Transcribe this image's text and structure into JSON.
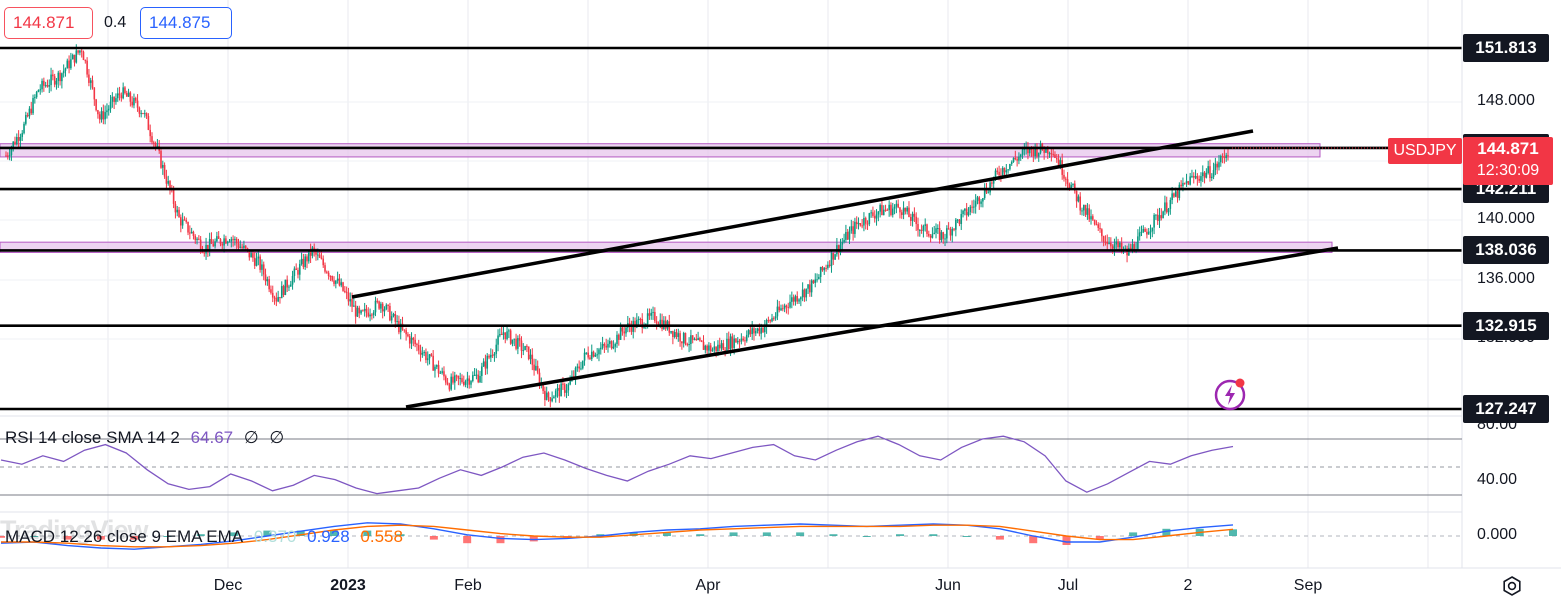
{
  "header": {
    "bid": "144.871",
    "spread": "0.4",
    "ask": "144.875"
  },
  "symbol": {
    "name": "USDJPY",
    "last": "144.871",
    "countdown": "12:30:09"
  },
  "colors": {
    "up": "#089981",
    "down": "#f23645",
    "zone": "#e7c6ec",
    "zone_border": "#b45ac3",
    "rsi": "#7e57c2",
    "macd": "#2962ff",
    "signal": "#ff6d00"
  },
  "levels": [
    {
      "label": "151.813",
      "value": 151.813
    },
    {
      "label": "145.009",
      "value": 145.009
    },
    {
      "label": "142.211",
      "value": 142.211
    },
    {
      "label": "138.036",
      "value": 138.036
    },
    {
      "label": "132.915",
      "value": 132.915
    },
    {
      "label": "127.247",
      "value": 127.247
    }
  ],
  "price_axis_ticks": [
    "148.000",
    "140.000",
    "136.000",
    "132.000"
  ],
  "rsi_axis_ticks": [
    "80.00",
    "40.00"
  ],
  "macd_axis_ticks": [
    "0.000"
  ],
  "date_labels": [
    "Dec",
    "2023",
    "Feb",
    "Apr",
    "Jun",
    "Jul",
    "2",
    "Sep"
  ],
  "rsi": {
    "label": "RSI 14 close SMA 14 2",
    "value": "64.67",
    "na1": "∅",
    "na2": "∅"
  },
  "macd": {
    "label": "MACD 12 26 close 9 EMA EMA",
    "hist": "0.370",
    "macd": "0.928",
    "signal": "0.558"
  },
  "watermark": "TradingView",
  "chart_data": {
    "type": "candlestick",
    "symbol": "USDJPY",
    "x_labels": [
      "Dec",
      "2023",
      "Feb",
      "Apr",
      "Jun",
      "Jul",
      "2",
      "Sep"
    ],
    "ylim": [
      126.5,
      153.5
    ],
    "series": [
      {
        "name": "USDJPY close (approx.)",
        "x": [
          0,
          10,
          18,
          30,
          42,
          52,
          64,
          76,
          84,
          96,
          110,
          124,
          140,
          150,
          170,
          186,
          196,
          208,
          220,
          230,
          246,
          262,
          276,
          290,
          300,
          312,
          322,
          334,
          344,
          360,
          376,
          392,
          406,
          420,
          434,
          448,
          460,
          472,
          484,
          496,
          508,
          520,
          536,
          552,
          566,
          580,
          596,
          608,
          622,
          640,
          656,
          670,
          678
        ],
        "values": [
          144.5,
          146.5,
          149.0,
          150.0,
          151.8,
          147.0,
          148.8,
          147.5,
          144.8,
          140.2,
          138.2,
          139.0,
          137.2,
          134.8,
          138.0,
          135.5,
          133.5,
          134.5,
          132.5,
          131.3,
          129.0,
          129.5,
          132.5,
          131.0,
          128.0,
          128.8,
          131.0,
          131.5,
          132.8,
          133.5,
          132.0,
          131.3,
          132.0,
          132.8,
          134.5,
          135.7,
          138.0,
          139.8,
          140.7,
          141.0,
          139.5,
          139.0,
          141.0,
          143.5,
          144.8,
          145.0,
          141.2,
          139.0,
          137.8,
          140.5,
          142.8,
          143.5,
          144.87
        ]
      }
    ],
    "levels": [
      151.813,
      145.009,
      142.211,
      138.036,
      132.915,
      127.247
    ],
    "zones": [
      [
        144.4,
        145.3
      ],
      [
        137.9,
        138.6
      ]
    ],
    "trendlines": [
      {
        "from": [
          "Jan",
          133.9
        ],
        "to": [
          "Aug",
          145.2
        ]
      },
      {
        "from": [
          "Jan",
          127.3
        ],
        "to": [
          "Aug",
          138.2
        ]
      }
    ],
    "rsi": {
      "ylim": [
        20,
        90
      ],
      "levels": [
        70,
        50,
        30
      ],
      "values": [
        55,
        52,
        58,
        54,
        62,
        66,
        60,
        48,
        38,
        34,
        36,
        45,
        40,
        33,
        37,
        44,
        41,
        35,
        31,
        33,
        35,
        42,
        48,
        44,
        50,
        57,
        60,
        55,
        49,
        44,
        40,
        47,
        52,
        58,
        56,
        60,
        64,
        66,
        58,
        55,
        62,
        68,
        72,
        66,
        58,
        55,
        64,
        70,
        72,
        68,
        58,
        40,
        32,
        38,
        46,
        54,
        52,
        58,
        62,
        64.67
      ]
    },
    "macd": {
      "ylim": [
        -1.6,
        1.6
      ],
      "macd": [
        -0.6,
        -0.5,
        -0.8,
        -1.0,
        -1.1,
        -0.9,
        -0.7,
        -0.4,
        0.0,
        0.4,
        0.8,
        1.1,
        1.0,
        0.6,
        0.1,
        -0.2,
        -0.3,
        -0.2,
        0.0,
        0.3,
        0.5,
        0.6,
        0.8,
        0.9,
        1.0,
        0.9,
        0.8,
        0.9,
        1.0,
        0.9,
        0.6,
        0.0,
        -0.5,
        -0.5,
        -0.1,
        0.4,
        0.7,
        0.928
      ],
      "signal": [
        -0.5,
        -0.5,
        -0.6,
        -0.8,
        -0.9,
        -0.9,
        -0.8,
        -0.6,
        -0.3,
        0.1,
        0.5,
        0.8,
        0.9,
        0.8,
        0.5,
        0.2,
        0.0,
        -0.1,
        -0.1,
        0.1,
        0.3,
        0.5,
        0.6,
        0.7,
        0.8,
        0.8,
        0.8,
        0.8,
        0.9,
        0.9,
        0.8,
        0.4,
        0.0,
        -0.3,
        -0.3,
        0.0,
        0.3,
        0.558
      ]
    }
  }
}
